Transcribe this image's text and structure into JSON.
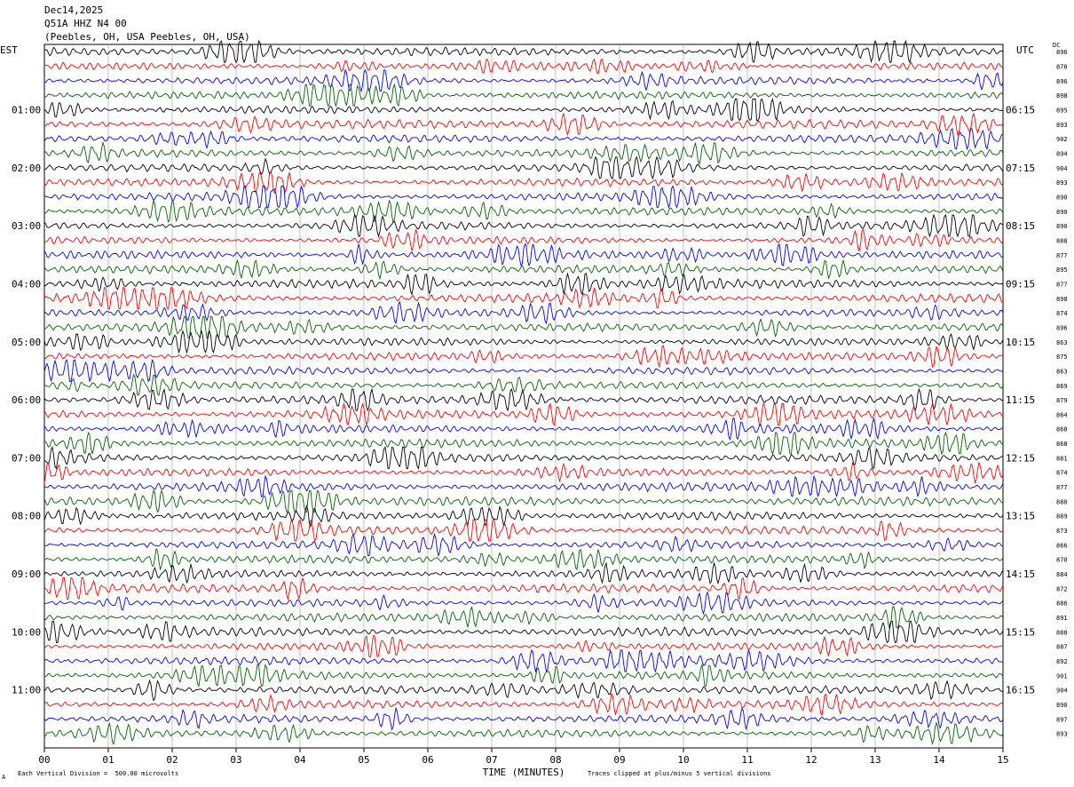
{
  "header": {
    "date": "Dec14,2025",
    "station": "Q51A HHZ N4 00",
    "location": "(Peebles, OH, USA Peebles, OH, USA)"
  },
  "left_axis_label": "EST",
  "right_axis_label": "UTC",
  "dc_label": "DC",
  "footer": {
    "scale_note": "Each Vertical Division =  500.00 microvolts",
    "clip_note": "Traces clipped at plus/minus 5 vertical divisions",
    "corner_mark": "A"
  },
  "colors": {
    "trace_cycle": [
      "#000000",
      "#ff0000",
      "#0000ff",
      "#006400"
    ],
    "grid": "#999999"
  },
  "chart_data": {
    "type": "line",
    "title": "Q51A HHZ N4 00",
    "xlabel": "TIME (MINUTES)",
    "ylabel": "",
    "xlim": [
      0,
      15
    ],
    "x_ticks": [
      "00",
      "01",
      "02",
      "03",
      "04",
      "05",
      "06",
      "07",
      "08",
      "09",
      "10",
      "11",
      "12",
      "13",
      "14",
      "15"
    ],
    "trace_count": 48,
    "left_time_labels": [
      "01:00",
      "02:00",
      "03:00",
      "04:00",
      "05:00",
      "06:00",
      "07:00",
      "08:00",
      "09:00",
      "10:00",
      "11:00"
    ],
    "right_time_labels": [
      "06:15",
      "07:15",
      "08:15",
      "09:15",
      "10:15",
      "11:15",
      "12:15",
      "13:15",
      "14:15",
      "15:15",
      "16:15"
    ],
    "dc_offsets": [
      "896",
      "878",
      "896",
      "898",
      "895",
      "893",
      "902",
      "894",
      "904",
      "893",
      "890",
      "890",
      "890",
      "888",
      "877",
      "895",
      "877",
      "898",
      "874",
      "896",
      "863",
      "875",
      "863",
      "869",
      "879",
      "864",
      "868",
      "868",
      "881",
      "874",
      "877",
      "880",
      "889",
      "873",
      "866",
      "870",
      "884",
      "872",
      "886",
      "891",
      "888",
      "887",
      "892",
      "901",
      "904",
      "890",
      "897",
      "893"
    ]
  }
}
